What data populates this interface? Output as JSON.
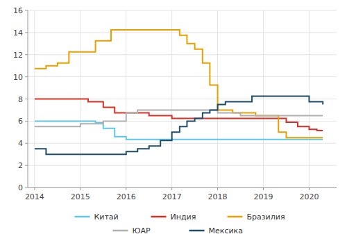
{
  "chart_data": {
    "type": "step",
    "xlim": [
      2013.85,
      2020.6
    ],
    "ylim": [
      0,
      16
    ],
    "xticks": [
      2014,
      2015,
      2016,
      2017,
      2018,
      2019,
      2020
    ],
    "yticks": [
      0,
      2,
      4,
      6,
      8,
      10,
      12,
      14,
      16
    ],
    "grid": true,
    "legend": "bottom",
    "series": [
      {
        "name": "Китай",
        "color": "#5bc8e8",
        "x": [
          2014.0,
          2014.17,
          2014.5,
          2015.0,
          2015.33,
          2015.5,
          2015.75,
          2016.0,
          2016.25,
          2020.3
        ],
        "values": [
          6.0,
          6.0,
          6.0,
          6.0,
          5.85,
          5.35,
          4.6,
          4.35,
          4.35,
          4.35
        ]
      },
      {
        "name": "Индия",
        "color": "#d93025",
        "x": [
          2014.0,
          2014.5,
          2015.0,
          2015.17,
          2015.5,
          2015.75,
          2016.0,
          2016.5,
          2017.0,
          2018.0,
          2018.5,
          2019.0,
          2019.5,
          2019.75,
          2020.0,
          2020.17,
          2020.3
        ],
        "values": [
          8.0,
          8.0,
          8.0,
          7.75,
          7.25,
          6.75,
          6.75,
          6.5,
          6.25,
          6.25,
          6.25,
          6.25,
          5.9,
          5.5,
          5.25,
          5.15,
          5.15
        ]
      },
      {
        "name": "Бразилия",
        "color": "#e8a000",
        "x": [
          2014.0,
          2014.25,
          2014.5,
          2014.75,
          2015.0,
          2015.33,
          2015.67,
          2016.0,
          2016.25,
          2017.0,
          2017.17,
          2017.33,
          2017.5,
          2017.67,
          2017.83,
          2018.0,
          2018.17,
          2018.33,
          2018.5,
          2018.83,
          2019.0,
          2019.33,
          2019.5,
          2019.67,
          2019.83,
          2020.0,
          2020.3
        ],
        "values": [
          10.75,
          11.0,
          11.25,
          12.25,
          12.25,
          13.25,
          14.25,
          14.25,
          14.25,
          14.25,
          13.75,
          13.0,
          12.5,
          11.25,
          9.25,
          7.0,
          7.0,
          6.75,
          6.75,
          6.5,
          6.5,
          5.0,
          4.5,
          4.5,
          4.5,
          4.5,
          4.5
        ]
      },
      {
        "name": "ЮАР",
        "color": "#b0b0b0",
        "x": [
          2014.0,
          2014.5,
          2015.0,
          2015.17,
          2015.5,
          2016.0,
          2016.25,
          2016.5,
          2017.0,
          2018.0,
          2018.5,
          2019.0,
          2019.83,
          2020.0,
          2020.3
        ],
        "values": [
          5.5,
          5.5,
          5.75,
          5.75,
          6.0,
          6.75,
          7.0,
          7.0,
          7.0,
          6.75,
          6.5,
          6.5,
          6.5,
          6.5,
          6.5
        ]
      },
      {
        "name": "Мексика",
        "color": "#1e4d6b",
        "x": [
          2014.0,
          2014.25,
          2015.0,
          2015.5,
          2015.75,
          2016.0,
          2016.25,
          2016.5,
          2016.75,
          2017.0,
          2017.17,
          2017.33,
          2017.5,
          2017.67,
          2017.83,
          2018.0,
          2018.17,
          2018.5,
          2018.75,
          2019.0,
          2019.17,
          2019.5,
          2019.83,
          2020.0,
          2020.3
        ],
        "values": [
          3.5,
          3.0,
          3.0,
          3.0,
          3.0,
          3.25,
          3.5,
          3.75,
          4.25,
          5.0,
          5.5,
          6.0,
          6.25,
          6.75,
          7.0,
          7.5,
          7.75,
          7.75,
          8.25,
          8.25,
          8.25,
          8.25,
          8.25,
          7.75,
          7.5
        ]
      }
    ]
  }
}
